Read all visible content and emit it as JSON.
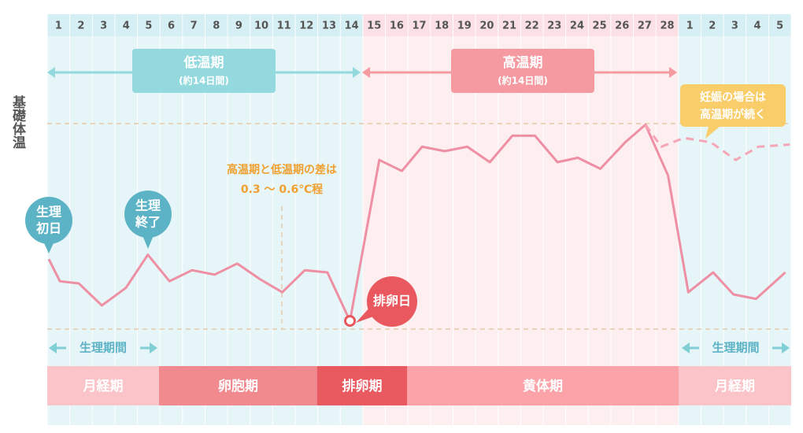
{
  "chart_data": {
    "type": "line",
    "y_label": "基礎体温",
    "categories": [
      "1",
      "2",
      "3",
      "4",
      "5",
      "6",
      "7",
      "8",
      "9",
      "10",
      "11",
      "12",
      "13",
      "14",
      "15",
      "16",
      "17",
      "18",
      "19",
      "20",
      "21",
      "22",
      "23",
      "24",
      "25",
      "26",
      "27",
      "28",
      "1",
      "2",
      "3",
      "4",
      "5"
    ],
    "xlim": [
      0.58,
      33.56
    ],
    "ylim": [
      0,
      100
    ],
    "series": [
      {
        "color": "#ee8fa3",
        "dashed": false,
        "x": [
          0.65,
          1.14,
          1.98,
          3.0,
          4.07,
          5.04,
          6.0,
          7.0,
          8.0,
          9.0,
          10.0,
          11.0,
          12.0,
          13.0,
          14.0,
          15.3,
          16.3,
          17.2,
          18.2,
          19.2,
          20.2,
          21.2,
          22.2,
          23.2,
          24.1,
          25.1,
          26.2,
          27.1,
          28.1,
          29.0,
          30.1,
          31.0,
          32.0,
          33.3
        ],
        "values": [
          36,
          26,
          25,
          15,
          23,
          38,
          26,
          31,
          29,
          34,
          27,
          21,
          31,
          30,
          8,
          81,
          76,
          87,
          85,
          87,
          80,
          92,
          92,
          80,
          82,
          77,
          89,
          97,
          74,
          21,
          30,
          20,
          18,
          30
        ]
      },
      {
        "color": "#f4a6b6",
        "dashed": true,
        "x": [
          27.1,
          27.8,
          28.8,
          30.0,
          31.1,
          32.1,
          33.5
        ],
        "values": [
          97,
          87,
          91,
          89,
          81,
          87,
          88
        ]
      }
    ],
    "phases_arrows": [
      {
        "title": "低温期",
        "note": "(約14日間)",
        "color": "#93d9dd"
      },
      {
        "title": "高温期",
        "note": "(約14日間)",
        "color": "#f59aa0"
      }
    ],
    "annotations": {
      "difference": [
        "高温期と低温期の差は",
        "0.3 〜 0.6℃程"
      ],
      "period_start": [
        "生理",
        "初日"
      ],
      "period_end": [
        "生理",
        "終了"
      ],
      "ovulation": "排卵日",
      "pregnancy": [
        "妊娠の場合は",
        "高温期が続く"
      ],
      "period_span": "生理期間"
    },
    "phases": [
      {
        "name": "月経期",
        "color": "#fbc4c8"
      },
      {
        "name": "卵胞期",
        "color": "#f08a8f"
      },
      {
        "name": "排卵期",
        "color": "#e85a5f"
      },
      {
        "name": "黄体期",
        "color": "#fba3a8"
      },
      {
        "name": "月経期",
        "color": "#fbc4c8"
      }
    ]
  }
}
